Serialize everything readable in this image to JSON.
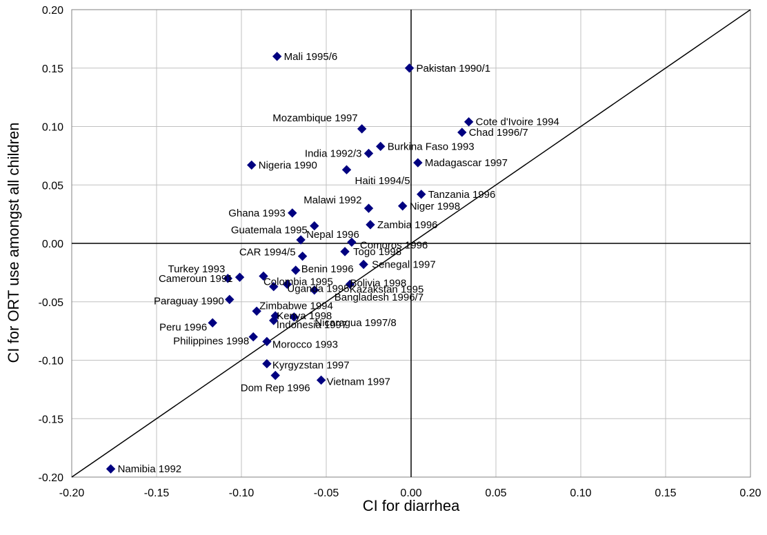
{
  "chart_data": {
    "type": "scatter",
    "title": "",
    "xlabel": "CI for diarrhea",
    "ylabel": "CI for ORT use amongst all children",
    "xlim": [
      -0.2,
      0.2
    ],
    "ylim": [
      -0.2,
      0.2
    ],
    "x_ticks": [
      "-0.20",
      "-0.15",
      "-0.10",
      "-0.05",
      "0.00",
      "0.05",
      "0.10",
      "0.15",
      "0.20"
    ],
    "y_ticks": [
      "0.20",
      "0.15",
      "0.10",
      "0.05",
      "0.00",
      "-0.05",
      "-0.10",
      "-0.15",
      "-0.20"
    ],
    "grid": true,
    "reference_line": "y = x",
    "marker": "diamond",
    "colors": {
      "marker": "#000080",
      "grid": "#c0c0c0",
      "axes": "#000000"
    },
    "points": [
      {
        "label": "Mali 1995/6",
        "x": -0.079,
        "y": 0.16
      },
      {
        "label": "Pakistan 1990/1",
        "x": -0.001,
        "y": 0.15
      },
      {
        "label": "Cote d'Ivoire 1994",
        "x": 0.034,
        "y": 0.104
      },
      {
        "label": "Chad 1996/7",
        "x": 0.03,
        "y": 0.095
      },
      {
        "label": "Mozambique 1997",
        "x": -0.029,
        "y": 0.098
      },
      {
        "label": "Burkina Faso 1993",
        "x": -0.018,
        "y": 0.083
      },
      {
        "label": "India 1992/3",
        "x": -0.025,
        "y": 0.077
      },
      {
        "label": "Madagascar 1997",
        "x": 0.004,
        "y": 0.069
      },
      {
        "label": "Nigeria 1990",
        "x": -0.094,
        "y": 0.067
      },
      {
        "label": "Haiti 1994/5",
        "x": -0.038,
        "y": 0.063
      },
      {
        "label": "Tanzania 1996",
        "x": 0.006,
        "y": 0.042
      },
      {
        "label": "Malawi 1992",
        "x": -0.025,
        "y": 0.03
      },
      {
        "label": "Niger 1998",
        "x": -0.005,
        "y": 0.032
      },
      {
        "label": "Ghana 1993",
        "x": -0.07,
        "y": 0.026
      },
      {
        "label": "Zambia 1996",
        "x": -0.024,
        "y": 0.016
      },
      {
        "label": "Guatemala 1995",
        "x": -0.057,
        "y": 0.015
      },
      {
        "label": "Nepal 1996",
        "x": -0.065,
        "y": 0.003
      },
      {
        "label": "Comoros 1996",
        "x": -0.035,
        "y": 0.001
      },
      {
        "label": "Togo 1998",
        "x": -0.039,
        "y": -0.007
      },
      {
        "label": "CAR 1994/5",
        "x": -0.064,
        "y": -0.011
      },
      {
        "label": "Turkey 1993",
        "x": -0.108,
        "y": -0.03
      },
      {
        "label": "Cameroun 1991",
        "x": -0.101,
        "y": -0.029
      },
      {
        "label": "Senegal 1997",
        "x": -0.028,
        "y": -0.018
      },
      {
        "label": "Benin 1996",
        "x": -0.068,
        "y": -0.023
      },
      {
        "label": "Colombia 1995",
        "x": -0.087,
        "y": -0.028
      },
      {
        "label": "Bolivia 1998",
        "x": -0.036,
        "y": -0.035
      },
      {
        "label": "Uganda 1995",
        "x": -0.073,
        "y": -0.035
      },
      {
        "label": "Kazakstan 1995",
        "x": -0.081,
        "y": -0.037
      },
      {
        "label": "Bangladesh 1996/7",
        "x": -0.057,
        "y": -0.04
      },
      {
        "label": "Paraguay 1990",
        "x": -0.107,
        "y": -0.048
      },
      {
        "label": "Zimbabwe 1994",
        "x": -0.091,
        "y": -0.058
      },
      {
        "label": "Kenya 1998",
        "x": -0.08,
        "y": -0.062
      },
      {
        "label": "Nicaragua 1997/8",
        "x": -0.069,
        "y": -0.063
      },
      {
        "label": "Indonesia 1997",
        "x": -0.081,
        "y": -0.066
      },
      {
        "label": "Peru 1996",
        "x": -0.117,
        "y": -0.068
      },
      {
        "label": "Philippines 1998",
        "x": -0.093,
        "y": -0.08
      },
      {
        "label": "Morocco 1993",
        "x": -0.085,
        "y": -0.084
      },
      {
        "label": "Kyrgyzstan 1997",
        "x": -0.085,
        "y": -0.103
      },
      {
        "label": "Dom Rep 1996",
        "x": -0.08,
        "y": -0.113
      },
      {
        "label": "Vietnam 1997",
        "x": -0.053,
        "y": -0.117
      },
      {
        "label": "Namibia 1992",
        "x": -0.177,
        "y": -0.193
      }
    ]
  }
}
